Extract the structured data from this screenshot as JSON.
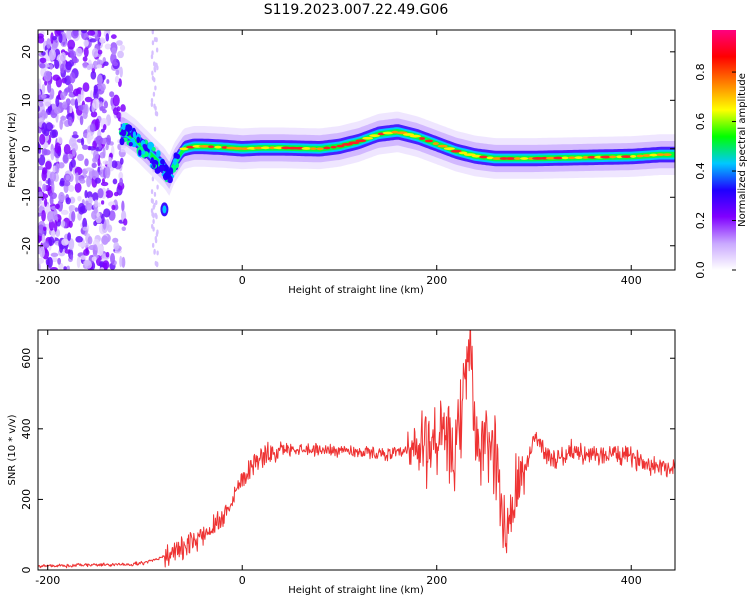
{
  "title": "S119.2023.007.22.49.G06",
  "chart_data": [
    {
      "type": "heatmap",
      "xlabel": "Height of straight line (km)",
      "ylabel": "Frequency (Hz)",
      "xlim": [
        -210,
        445
      ],
      "ylim": [
        -25,
        24.5
      ],
      "xticks": [
        -200,
        0,
        200,
        400
      ],
      "yticks": [
        -20,
        -10,
        0,
        10,
        20
      ],
      "colorbar": {
        "label": "Normalized spectral amplitude",
        "range": [
          0,
          0.97
        ],
        "ticks": [
          "0.0",
          "0.2",
          "0.4",
          "0.6",
          "0.8"
        ],
        "colormap": [
          "#ffffff",
          "#c9a8ff",
          "#8000ff",
          "#1f00ff",
          "#00c8ff",
          "#00ff00",
          "#ffff00",
          "#ff8000",
          "#ff0000",
          "#ff007f"
        ]
      },
      "ridge": {
        "height_km": [
          -120,
          -110,
          -100,
          -90,
          -80,
          -75,
          -70,
          -60,
          -50,
          -40,
          -20,
          0,
          20,
          40,
          60,
          80,
          100,
          120,
          140,
          160,
          180,
          200,
          220,
          240,
          260,
          300,
          350,
          400,
          430,
          445
        ],
        "frequency_hz": [
          3.5,
          2,
          0,
          -2,
          -4,
          -5.5,
          -3,
          0,
          0.5,
          0.5,
          0.3,
          0,
          0.2,
          0.2,
          0.1,
          0,
          0.5,
          1.5,
          3,
          3.5,
          2.5,
          1,
          -0.5,
          -1.5,
          -2,
          -2,
          -1.8,
          -1.6,
          -1.2,
          -1.2
        ]
      },
      "isolated_feature": {
        "height_km": -80,
        "frequency_hz": -12.5
      },
      "noise_region_km": [
        -210,
        -120
      ]
    },
    {
      "type": "line",
      "xlabel": "Height of straight line (km)",
      "ylabel": "SNR (10 * v/v)",
      "xlim": [
        -210,
        445
      ],
      "ylim": [
        0,
        680
      ],
      "xticks": [
        -200,
        0,
        200,
        400
      ],
      "yticks": [
        0,
        200,
        400,
        600
      ],
      "color": "#ee3333",
      "x": [
        -210,
        -180,
        -150,
        -120,
        -100,
        -80,
        -60,
        -40,
        -20,
        0,
        10,
        20,
        40,
        60,
        80,
        100,
        120,
        140,
        160,
        180,
        200,
        220,
        235,
        240,
        260,
        270,
        280,
        290,
        300,
        320,
        340,
        360,
        380,
        400,
        420,
        445
      ],
      "y": [
        12,
        12,
        15,
        15,
        20,
        40,
        60,
        100,
        150,
        260,
        300,
        320,
        340,
        345,
        340,
        340,
        335,
        330,
        330,
        335,
        380,
        320,
        680,
        340,
        350,
        100,
        200,
        270,
        380,
        310,
        340,
        320,
        330,
        320,
        300,
        290
      ]
    }
  ]
}
